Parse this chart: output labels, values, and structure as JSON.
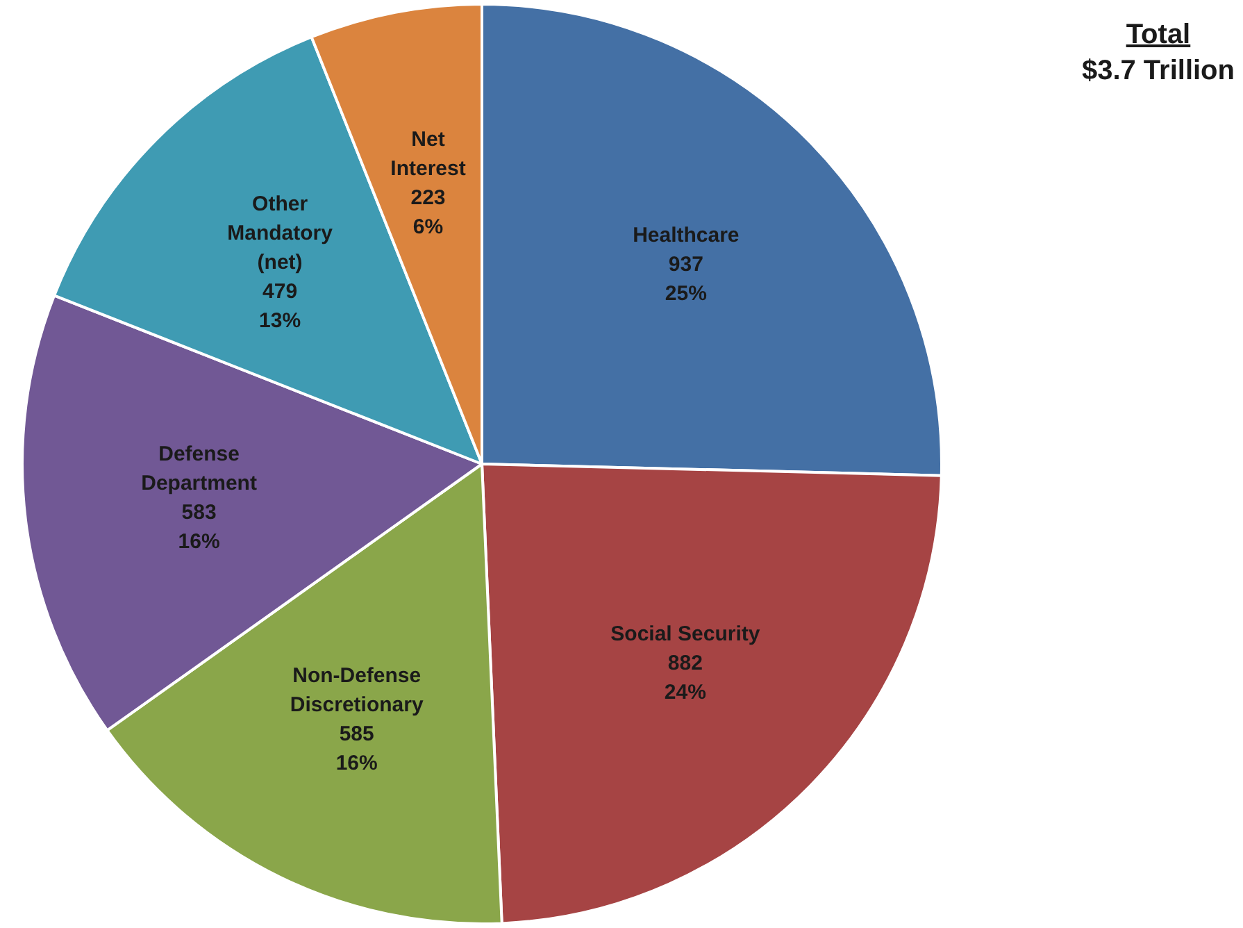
{
  "chart_data": {
    "type": "pie",
    "title": "Total",
    "subtitle": "$3.7 Trillion",
    "categories": [
      "Healthcare",
      "Social Security",
      "Non-Defense Discretionary",
      "Defense Department",
      "Other Mandatory (net)",
      "Net Interest"
    ],
    "values": [
      937,
      882,
      585,
      583,
      479,
      223
    ],
    "colors": [
      "#4470a5",
      "#a64444",
      "#8aa64a",
      "#715895",
      "#3f9bb3",
      "#db843e"
    ],
    "value_labels": [
      "937\n25%",
      "882\n24%",
      "585\n16%",
      "583\n16%",
      "479\n13%",
      "223\n6%"
    ],
    "legend": false
  }
}
